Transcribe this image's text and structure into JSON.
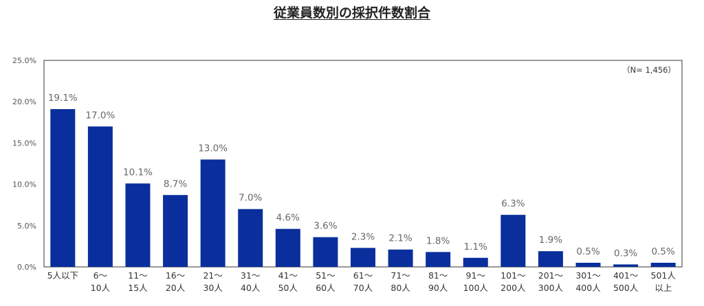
{
  "chart_data": {
    "type": "bar",
    "title": "従業員数別の採択件数割合",
    "note": "（N= 1,456）",
    "categories": [
      [
        "5人以下"
      ],
      [
        "6〜",
        "10人"
      ],
      [
        "11〜",
        "15人"
      ],
      [
        "16〜",
        "20人"
      ],
      [
        "21〜",
        "30人"
      ],
      [
        "31〜",
        "40人"
      ],
      [
        "41〜",
        "50人"
      ],
      [
        "51〜",
        "60人"
      ],
      [
        "61〜",
        "70人"
      ],
      [
        "71〜",
        "80人"
      ],
      [
        "81〜",
        "90人"
      ],
      [
        "91〜",
        "100人"
      ],
      [
        "101〜",
        "200人"
      ],
      [
        "201〜",
        "300人"
      ],
      [
        "301〜",
        "400人"
      ],
      [
        "401〜",
        "500人"
      ],
      [
        "501人",
        "以上"
      ]
    ],
    "values": [
      19.1,
      17.0,
      10.1,
      8.7,
      13.0,
      7.0,
      4.6,
      3.6,
      2.3,
      2.1,
      1.8,
      1.1,
      6.3,
      1.9,
      0.5,
      0.3,
      0.5
    ],
    "value_labels": [
      "19.1%",
      "17.0%",
      "10.1%",
      "8.7%",
      "13.0%",
      "7.0%",
      "4.6%",
      "3.6%",
      "2.3%",
      "2.1%",
      "1.8%",
      "1.1%",
      "6.3%",
      "1.9%",
      "0.5%",
      "0.3%",
      "0.5%"
    ],
    "yticks": [
      "0.0%",
      "5.0%",
      "10.0%",
      "15.0%",
      "20.0%",
      "25.0%"
    ],
    "ylim": [
      0,
      25
    ],
    "grid": false,
    "bar_color": "#0a2f9c"
  }
}
